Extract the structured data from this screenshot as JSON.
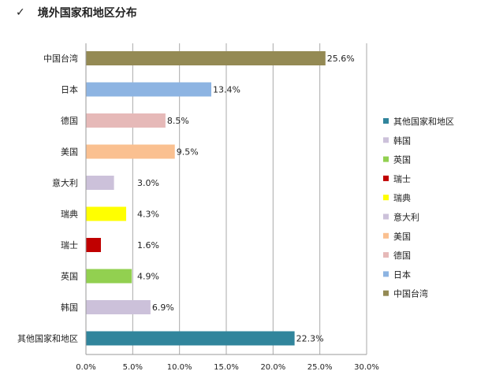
{
  "header": {
    "check_symbol": "✓",
    "title": "境外国家和地区分布"
  },
  "chart_data": {
    "type": "bar",
    "orientation": "horizontal",
    "title": "境外国家和地区分布",
    "categories": [
      "中国台湾",
      "日本",
      "德国",
      "美国",
      "意大利",
      "瑞典",
      "瑞士",
      "英国",
      "韩国",
      "其他国家和地区"
    ],
    "values": [
      25.6,
      13.4,
      8.5,
      9.5,
      3.0,
      4.3,
      1.6,
      4.9,
      6.9,
      22.3
    ],
    "value_labels": [
      "25.6%",
      "13.4%",
      "8.5%",
      "9.5%",
      "3.0%",
      "4.3%",
      "1.6%",
      "4.9%",
      "6.9%",
      "22.3%"
    ],
    "colors": [
      "#948A54",
      "#8DB4E2",
      "#E6B9B8",
      "#FAC090",
      "#CCC1DA",
      "#FFFF00",
      "#C00000",
      "#92D050",
      "#CCC1DA",
      "#31859C"
    ],
    "xlim": [
      0,
      30
    ],
    "xticks": [
      "0.0%",
      "5.0%",
      "10.0%",
      "15.0%",
      "20.0%",
      "25.0%",
      "30.0%"
    ],
    "grid": true,
    "legend": {
      "position": "right",
      "entries": [
        {
          "name": "其他国家和地区",
          "color": "#31859C"
        },
        {
          "name": "韩国",
          "color": "#CCC1DA"
        },
        {
          "name": "英国",
          "color": "#92D050"
        },
        {
          "name": "瑞士",
          "color": "#C00000"
        },
        {
          "name": "瑞典",
          "color": "#FFFF00"
        },
        {
          "name": "意大利",
          "color": "#CCC1DA"
        },
        {
          "name": "美国",
          "color": "#FAC090"
        },
        {
          "name": "德国",
          "color": "#E6B9B8"
        },
        {
          "name": "日本",
          "color": "#8DB4E2"
        },
        {
          "name": "中国台湾",
          "color": "#948A54"
        }
      ]
    }
  }
}
